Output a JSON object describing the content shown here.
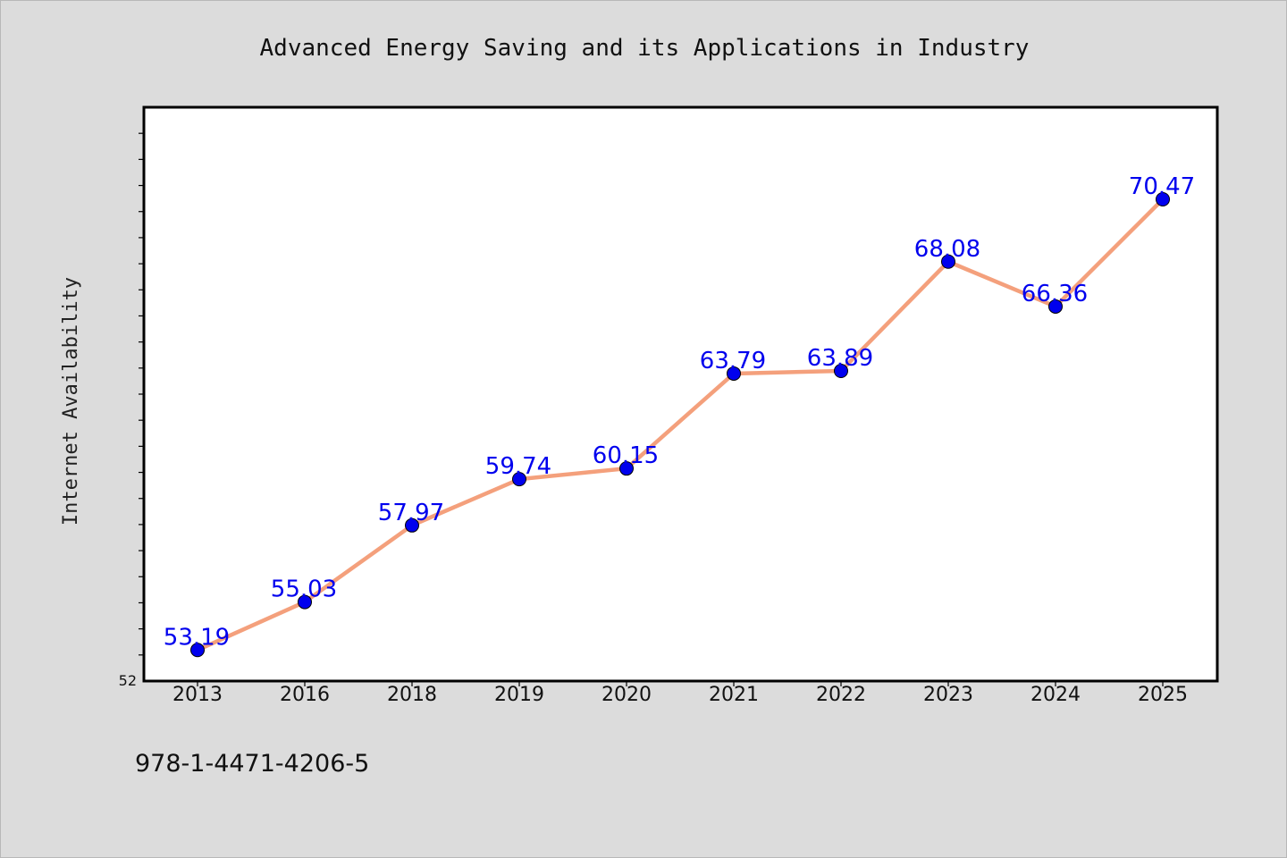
{
  "chart_data": {
    "type": "line",
    "title": "Advanced Energy Saving and its Applications in Industry",
    "xlabel": "",
    "ylabel": "Internet Availability",
    "categories": [
      "2013",
      "2016",
      "2018",
      "2019",
      "2020",
      "2021",
      "2022",
      "2023",
      "2024",
      "2025"
    ],
    "series": [
      {
        "values": [
          53.19,
          55.03,
          57.97,
          59.74,
          60.15,
          63.79,
          63.89,
          68.08,
          66.36,
          70.47
        ],
        "line_color": "#f4a07c",
        "marker_color": "#0000ee"
      }
    ],
    "data_labels": [
      "53.19",
      "55.03",
      "57.97",
      "59.74",
      "60.15",
      "63.79",
      "63.89",
      "68.08",
      "66.36",
      "70.47"
    ],
    "data_label_color": "#0000ee",
    "ylim": [
      52,
      74
    ],
    "y_tick_labels": [
      "52"
    ],
    "grid": false,
    "legend": "none"
  },
  "caption": "978-1-4471-4206-5"
}
